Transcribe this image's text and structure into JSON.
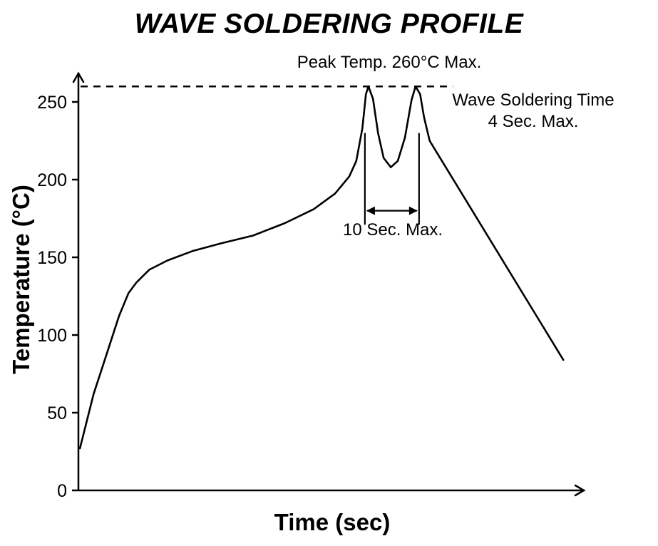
{
  "figure": {
    "background": "#ffffff",
    "ink_color": "#000000"
  },
  "chart_data": {
    "type": "line",
    "title": "WAVE SOLDERING PROFILE",
    "xlabel": "Time (sec)",
    "ylabel": "Temperature (°C)",
    "x_range": [
      0,
      100
    ],
    "y_range": [
      0,
      280
    ],
    "y_ticks": [
      0,
      50,
      100,
      150,
      200,
      250
    ],
    "x_ticks": [],
    "grid": false,
    "legend": false,
    "line_color": "#000000",
    "reference_line": {
      "value": 260,
      "style": "dashed"
    },
    "annotations": {
      "peak_temp": "Peak Temp. 260°C Max.",
      "wave_time_line1": "Wave Soldering Time",
      "wave_time_line2": "4 Sec. Max.",
      "window_label": "10 Sec. Max."
    },
    "window": {
      "x": [
        56.6,
        67.3
      ],
      "line_top": 230,
      "line_bottom": 171,
      "arrow_at": 180
    },
    "peak_temperature_c": 260,
    "dip_temperature_c": 208,
    "series": [
      {
        "name": "wave-soldering-temperature-profile",
        "points": [
          [
            0.3,
            27
          ],
          [
            3,
            62
          ],
          [
            5.6,
            88
          ],
          [
            8,
            112
          ],
          [
            9.9,
            127
          ],
          [
            11.5,
            134
          ],
          [
            14,
            142
          ],
          [
            17.6,
            148
          ],
          [
            22.5,
            154
          ],
          [
            28.2,
            159
          ],
          [
            34.5,
            164
          ],
          [
            40.8,
            172
          ],
          [
            46.5,
            181
          ],
          [
            50.7,
            191
          ],
          [
            53.5,
            202
          ],
          [
            54.9,
            212
          ],
          [
            56.1,
            233
          ],
          [
            56.8,
            255
          ],
          [
            57.3,
            260
          ],
          [
            58.2,
            252
          ],
          [
            59.2,
            230
          ],
          [
            60.3,
            214
          ],
          [
            61.7,
            208
          ],
          [
            63.1,
            212
          ],
          [
            64.5,
            227
          ],
          [
            65.8,
            251
          ],
          [
            66.6,
            260
          ],
          [
            67.5,
            255
          ],
          [
            68.3,
            240
          ],
          [
            69.4,
            225
          ],
          [
            70.7,
            218
          ],
          [
            95.8,
            84
          ]
        ]
      }
    ]
  }
}
